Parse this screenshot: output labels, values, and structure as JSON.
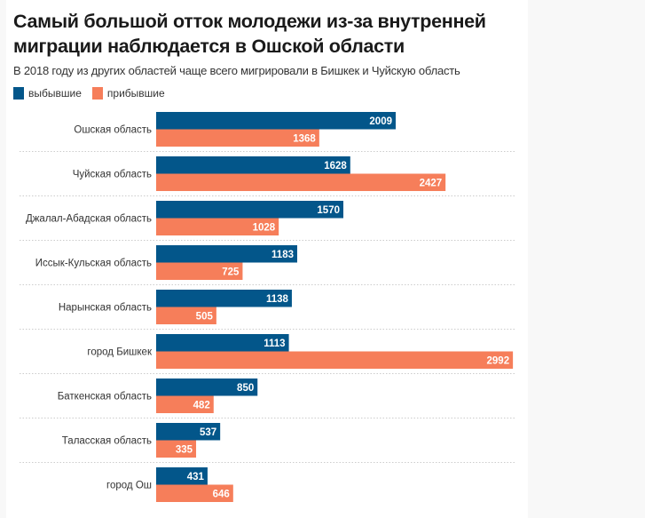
{
  "chart_data": {
    "type": "bar",
    "orientation": "horizontal",
    "title": "Самый большой отток молодежи из-за внутренней миграции наблюдается в Ошской области",
    "subtitle": "В 2018 году из других областей чаще всего мигрировали в Бишкек и Чуйскую область",
    "xlabel": "",
    "ylabel": "",
    "legend_position": "top-left",
    "grid": false,
    "categories": [
      "Ошская область",
      "Чуйская область",
      "Джалал-Абадская область",
      "Иссык-Кульская область",
      "Нарынская область",
      "город Бишкек",
      "Баткенская область",
      "Таласская область",
      "город Ош"
    ],
    "series": [
      {
        "name": "выбывшие",
        "color": "#03568a",
        "values": [
          2009,
          1628,
          1570,
          1183,
          1138,
          1113,
          850,
          537,
          431
        ]
      },
      {
        "name": "прибывшие",
        "color": "#f67e5a",
        "values": [
          1368,
          2427,
          1028,
          725,
          505,
          2992,
          482,
          335,
          646
        ]
      }
    ],
    "xlim": [
      0,
      3000
    ]
  }
}
